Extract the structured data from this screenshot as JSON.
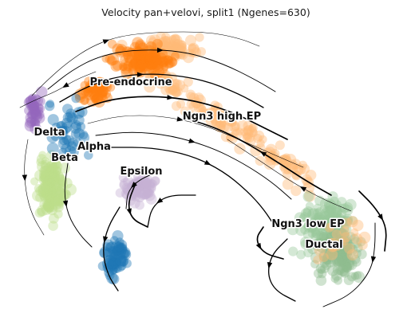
{
  "chart_data": {
    "type": "scatter",
    "title": "Velocity pan+velovi, split1 (Ngenes=630)",
    "xlabel": "",
    "ylabel": "",
    "axes_visible": false,
    "legend": "on-data labels",
    "overlay": "velocity streamlines with arrowheads",
    "clusters": [
      {
        "name": "Pre-endocrine",
        "color": "#ff7f0e"
      },
      {
        "name": "Ngn3 high EP",
        "color": "#ffbb78"
      },
      {
        "name": "Delta",
        "color": "#9467bd"
      },
      {
        "name": "Alpha",
        "color": "#1f77b4"
      },
      {
        "name": "Beta",
        "color": "#bcde8a"
      },
      {
        "name": "Epsilon",
        "color": "#c5b0d5"
      },
      {
        "name": "Ngn3 low EP",
        "color": "#98c79a"
      },
      {
        "name": "Ductal",
        "color": "#8fbc8f"
      }
    ]
  }
}
